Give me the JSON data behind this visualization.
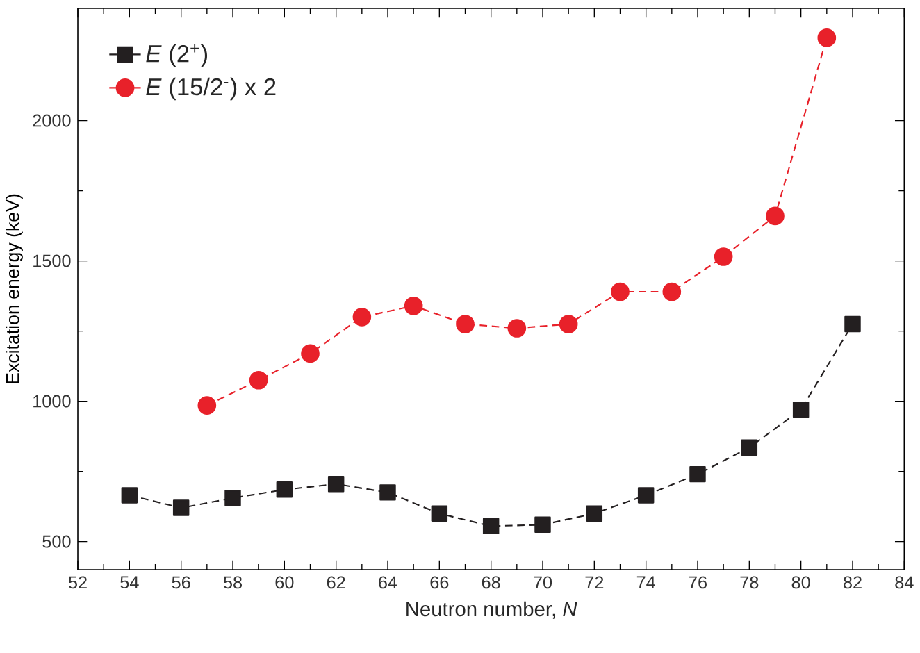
{
  "chart_data": {
    "type": "line",
    "xlabel": "Neutron number, *N*",
    "ylabel": "Excitation energy (keV)",
    "xlim": [
      52,
      84
    ],
    "xticks": [
      52,
      54,
      56,
      58,
      60,
      62,
      64,
      66,
      68,
      70,
      72,
      74,
      76,
      78,
      80,
      82,
      84
    ],
    "ylim": [
      400,
      2400
    ],
    "yticks": [
      500,
      1000,
      1500,
      2000
    ],
    "legend": "top left",
    "line_style": "dashed",
    "grid": false,
    "series": [
      {
        "name": "*E* (2$^{+}$)",
        "color": "#231f20",
        "marker": "square",
        "x": [
          54,
          56,
          58,
          60,
          62,
          64,
          66,
          68,
          70,
          72,
          74,
          76,
          78,
          80,
          82
        ],
        "values": [
          665,
          620,
          655,
          685,
          705,
          675,
          600,
          555,
          560,
          600,
          665,
          740,
          835,
          970,
          1275
        ]
      },
      {
        "name": "*E* (15/2$^{-}$) x 2",
        "color": "#e8212a",
        "marker": "circle",
        "x": [
          57,
          59,
          61,
          63,
          65,
          67,
          69,
          71,
          73,
          75,
          77,
          79,
          81
        ],
        "values": [
          985,
          1075,
          1170,
          1300,
          1340,
          1275,
          1260,
          1275,
          1390,
          1390,
          1515,
          1660,
          2295
        ]
      }
    ]
  }
}
